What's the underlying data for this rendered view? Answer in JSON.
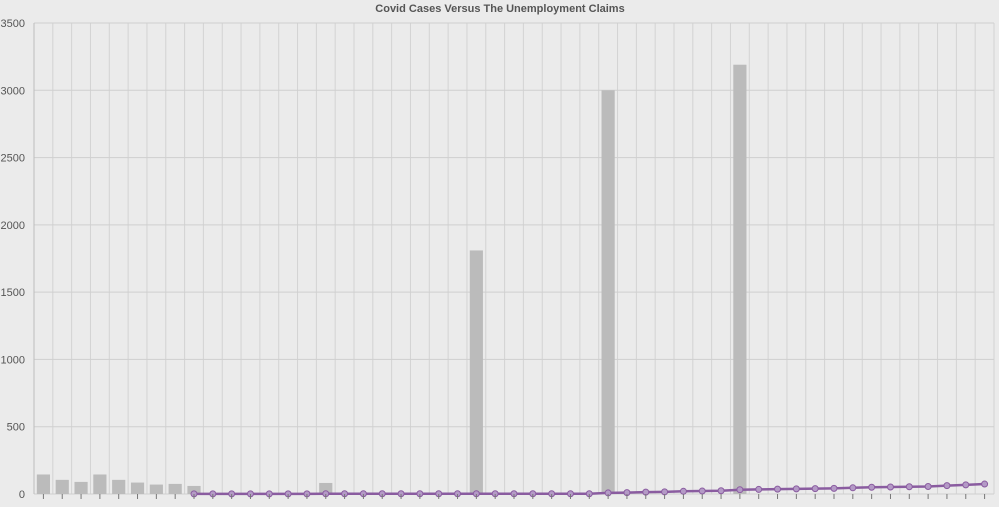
{
  "chart_data": {
    "type": "bar",
    "title": "Covid Cases Versus The Unemployment Claims",
    "xlabel": "",
    "ylabel": "",
    "ylim": [
      0,
      3500
    ],
    "yticks": [
      0,
      500,
      1000,
      1500,
      2000,
      2500,
      3000,
      3500
    ],
    "grid": true,
    "legend": "none",
    "n_categories": 51,
    "series": [
      {
        "name": "",
        "type": "bar",
        "color": "#bbbbbb",
        "values": [
          145,
          105,
          90,
          145,
          105,
          85,
          70,
          75,
          60,
          null,
          null,
          null,
          null,
          null,
          null,
          82,
          null,
          null,
          null,
          null,
          null,
          null,
          null,
          1810,
          null,
          null,
          null,
          null,
          null,
          null,
          3000,
          null,
          null,
          null,
          null,
          null,
          null,
          3190,
          null,
          null,
          null,
          null,
          null,
          null,
          null,
          null,
          null,
          null,
          null,
          null,
          null
        ]
      },
      {
        "name": "",
        "type": "line",
        "color": "#8a5ca0",
        "values": [
          null,
          null,
          null,
          null,
          null,
          null,
          null,
          null,
          1,
          1,
          1,
          1,
          1,
          1,
          1,
          2,
          2,
          2,
          2,
          2,
          2,
          2,
          2,
          2,
          2,
          2,
          2,
          2,
          2,
          2,
          8,
          10,
          14,
          16,
          20,
          22,
          24,
          32,
          34,
          36,
          38,
          40,
          42,
          46,
          50,
          52,
          54,
          56,
          62,
          68,
          74
        ]
      }
    ]
  }
}
